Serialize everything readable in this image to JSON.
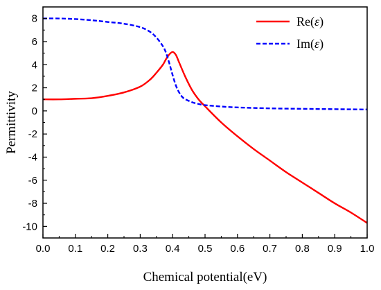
{
  "chart_data": {
    "type": "line",
    "title": "",
    "xlabel": "Chemical potential(eV)",
    "ylabel": "Permittivity",
    "xlim": [
      0.0,
      1.0
    ],
    "ylim": [
      -11,
      9
    ],
    "xticks": [
      0.0,
      0.1,
      0.2,
      0.3,
      0.4,
      0.5,
      0.6,
      0.7,
      0.8,
      0.9,
      1.0
    ],
    "xtick_labels": [
      "0.0",
      "0.1",
      "0.2",
      "0.3",
      "0.4",
      "0.5",
      "0.6",
      "0.7",
      "0.8",
      "0.9",
      "1.0"
    ],
    "yticks": [
      8,
      6,
      4,
      2,
      0,
      -2,
      -4,
      -6,
      -8,
      -10
    ],
    "ytick_labels": [
      "8",
      "6",
      "4",
      "2",
      "0",
      "-2",
      "-4",
      "-6",
      "-8",
      "-10"
    ],
    "grid": false,
    "legend": "top-right",
    "series": [
      {
        "name": "Re(ε)",
        "name_prefix": "Re(",
        "name_symbol": "ε",
        "name_suffix": ")",
        "color": "#ff0000",
        "style": "solid",
        "x": [
          0.0,
          0.05,
          0.1,
          0.15,
          0.2,
          0.25,
          0.3,
          0.33,
          0.35,
          0.37,
          0.38,
          0.39,
          0.4,
          0.41,
          0.42,
          0.44,
          0.46,
          0.48,
          0.5,
          0.55,
          0.6,
          0.65,
          0.7,
          0.75,
          0.8,
          0.85,
          0.9,
          0.95,
          1.0
        ],
        "y": [
          1.0,
          1.0,
          1.05,
          1.1,
          1.3,
          1.6,
          2.1,
          2.7,
          3.3,
          4.0,
          4.5,
          4.9,
          5.1,
          4.85,
          4.2,
          2.9,
          1.8,
          1.0,
          0.4,
          -1.0,
          -2.2,
          -3.3,
          -4.3,
          -5.3,
          -6.2,
          -7.1,
          -8.0,
          -8.8,
          -9.7
        ]
      },
      {
        "name": "Im(ε)",
        "name_prefix": "Im(",
        "name_symbol": "ε",
        "name_suffix": ")",
        "color": "#0000ff",
        "style": "dashed",
        "x": [
          0.0,
          0.05,
          0.1,
          0.15,
          0.2,
          0.25,
          0.3,
          0.33,
          0.35,
          0.37,
          0.38,
          0.39,
          0.4,
          0.41,
          0.42,
          0.43,
          0.44,
          0.46,
          0.48,
          0.5,
          0.55,
          0.6,
          0.7,
          0.8,
          0.9,
          1.0
        ],
        "y": [
          8.0,
          8.0,
          7.95,
          7.85,
          7.7,
          7.55,
          7.25,
          6.85,
          6.35,
          5.6,
          5.0,
          4.1,
          3.1,
          2.2,
          1.6,
          1.2,
          1.0,
          0.75,
          0.6,
          0.5,
          0.38,
          0.3,
          0.22,
          0.18,
          0.15,
          0.12
        ]
      }
    ]
  }
}
